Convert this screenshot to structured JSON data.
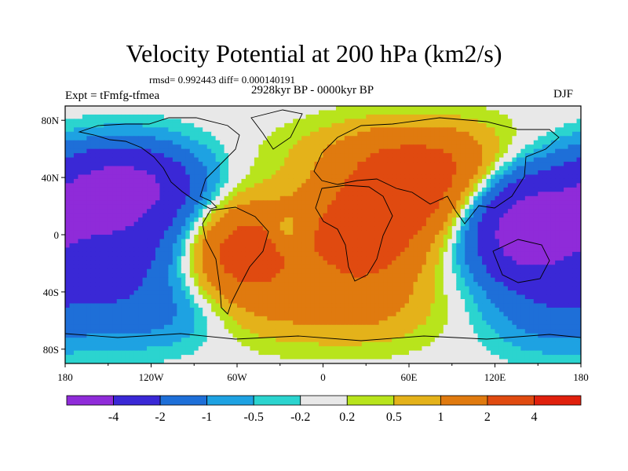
{
  "chart_data": {
    "type": "heatmap",
    "title": "Velocity Potential at 200 hPa (km2/s)",
    "stats_line": "rmsd= 0.992443  diff= 0.000140191",
    "experiment_label": "Expt = tFmfg-tfmea",
    "period_label": "2928kyr BP - 0000kyr BP",
    "season_label": "DJF",
    "x_axis": {
      "range": [
        -180,
        180
      ],
      "ticks": [
        {
          "value": -180,
          "label": "180"
        },
        {
          "value": -120,
          "label": "120W"
        },
        {
          "value": -60,
          "label": "60W"
        },
        {
          "value": 0,
          "label": "0"
        },
        {
          "value": 60,
          "label": "60E"
        },
        {
          "value": 120,
          "label": "120E"
        },
        {
          "value": 180,
          "label": "180"
        }
      ]
    },
    "y_axis": {
      "range": [
        -90,
        90
      ],
      "ticks": [
        {
          "value": 80,
          "label": "80N"
        },
        {
          "value": 40,
          "label": "40N"
        },
        {
          "value": 0,
          "label": "0"
        },
        {
          "value": -40,
          "label": "40S"
        },
        {
          "value": -80,
          "label": "80S"
        }
      ]
    },
    "colorbar": {
      "colors": [
        "#8f2bd9",
        "#3a28d6",
        "#1e6fd8",
        "#1ea2e2",
        "#2bd4cf",
        "#e8e8e8",
        "#b8e41c",
        "#e4b21a",
        "#e07a0f",
        "#e04a10",
        "#e0200d"
      ],
      "labels": [
        "-4",
        "-2",
        "-1",
        "-0.5",
        "-0.2",
        "0.2",
        "0.5",
        "1",
        "2",
        "4"
      ]
    },
    "centers": [
      {
        "lon": -140,
        "lat": 35,
        "amp": -4.5,
        "sx": 38,
        "sy": 20
      },
      {
        "lon": -145,
        "lat": -8,
        "amp": -3.0,
        "sx": 40,
        "sy": 26
      },
      {
        "lon": 140,
        "lat": 5,
        "amp": -5.5,
        "sx": 28,
        "sy": 26
      },
      {
        "lon": -60,
        "lat": -12,
        "amp": 2.8,
        "sx": 32,
        "sy": 28
      },
      {
        "lon": 30,
        "lat": 0,
        "amp": 2.5,
        "sx": 32,
        "sy": 32
      },
      {
        "lon": 80,
        "lat": 35,
        "amp": 2.2,
        "sx": 40,
        "sy": 25
      },
      {
        "lon": 0,
        "lat": -55,
        "amp": 0.8,
        "sx": 60,
        "sy": 18
      },
      {
        "lon": 50,
        "lat": 60,
        "amp": 0.7,
        "sx": 55,
        "sy": 16
      },
      {
        "lon": -25,
        "lat": 3,
        "amp": -1.0,
        "sx": 8,
        "sy": 9
      },
      {
        "lon": -110,
        "lat": -55,
        "amp": -1.2,
        "sx": 40,
        "sy": 18
      },
      {
        "lon": 160,
        "lat": -55,
        "amp": -1.2,
        "sx": 35,
        "sy": 20
      }
    ]
  }
}
